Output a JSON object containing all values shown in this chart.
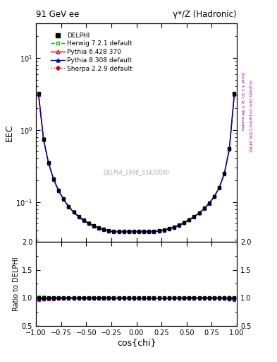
{
  "title_left": "91 GeV ee",
  "title_right": "γ*/Z (Hadronic)",
  "ylabel_main": "EEC",
  "ylabel_ratio": "Ratio to DELPHI",
  "xlabel": "cos{chi}",
  "watermark": "DELPHI_1996_S3430090",
  "right_label_top": "Rivet 3.1.10, ≥ 3.3M events",
  "right_label_bot": "mcplots.cern.ch [arXiv:1306.3436]",
  "xlim": [
    -1.0,
    1.0
  ],
  "ylim_main": [
    0.028,
    30
  ],
  "ylim_ratio": [
    0.5,
    2.0
  ],
  "cos_chi": [
    -0.975,
    -0.925,
    -0.875,
    -0.825,
    -0.775,
    -0.725,
    -0.675,
    -0.625,
    -0.575,
    -0.525,
    -0.475,
    -0.425,
    -0.375,
    -0.325,
    -0.275,
    -0.225,
    -0.175,
    -0.125,
    -0.075,
    -0.025,
    0.025,
    0.075,
    0.125,
    0.175,
    0.225,
    0.275,
    0.325,
    0.375,
    0.425,
    0.475,
    0.525,
    0.575,
    0.625,
    0.675,
    0.725,
    0.775,
    0.825,
    0.875,
    0.925,
    0.975
  ],
  "data_delphi": [
    3.2,
    0.75,
    0.35,
    0.21,
    0.145,
    0.11,
    0.087,
    0.073,
    0.063,
    0.056,
    0.051,
    0.047,
    0.044,
    0.042,
    0.04,
    0.039,
    0.039,
    0.039,
    0.039,
    0.039,
    0.039,
    0.039,
    0.039,
    0.039,
    0.04,
    0.041,
    0.043,
    0.045,
    0.048,
    0.052,
    0.057,
    0.063,
    0.071,
    0.082,
    0.097,
    0.12,
    0.16,
    0.25,
    0.55,
    3.2
  ],
  "data_delphi_err": [
    0.05,
    0.012,
    0.006,
    0.004,
    0.003,
    0.002,
    0.0015,
    0.0013,
    0.0011,
    0.001,
    0.0009,
    0.0008,
    0.0007,
    0.0007,
    0.0006,
    0.0006,
    0.0006,
    0.0006,
    0.0006,
    0.0006,
    0.0006,
    0.0006,
    0.0006,
    0.0006,
    0.0006,
    0.0007,
    0.0007,
    0.0008,
    0.0009,
    0.001,
    0.0011,
    0.0013,
    0.0015,
    0.002,
    0.003,
    0.004,
    0.006,
    0.01,
    0.02,
    0.05
  ],
  "herwig_ratio": [
    1.01,
    1.01,
    1.008,
    1.008,
    1.007,
    1.007,
    1.007,
    1.007,
    1.007,
    1.007,
    1.006,
    1.006,
    1.006,
    1.006,
    1.007,
    1.007,
    1.007,
    1.007,
    1.007,
    1.007,
    1.007,
    1.007,
    1.007,
    1.007,
    1.007,
    1.007,
    1.007,
    1.006,
    1.006,
    1.006,
    1.006,
    1.006,
    1.006,
    1.006,
    1.006,
    1.006,
    1.006,
    1.005,
    1.008,
    1.008
  ],
  "pythia6_ratio": [
    0.97,
    0.975,
    0.98,
    0.982,
    0.984,
    0.984,
    0.985,
    0.986,
    0.986,
    0.986,
    0.986,
    0.986,
    0.987,
    0.987,
    0.987,
    0.987,
    0.987,
    0.987,
    0.987,
    0.987,
    0.987,
    0.987,
    0.987,
    0.987,
    0.987,
    0.987,
    0.987,
    0.987,
    0.987,
    0.987,
    0.987,
    0.987,
    0.987,
    0.987,
    0.987,
    0.987,
    0.986,
    0.984,
    0.975,
    0.97
  ],
  "pythia8_ratio": [
    0.98,
    0.982,
    0.984,
    0.985,
    0.986,
    0.987,
    0.987,
    0.987,
    0.987,
    0.987,
    0.987,
    0.987,
    0.987,
    0.987,
    0.987,
    0.987,
    0.987,
    0.987,
    0.987,
    0.987,
    0.987,
    0.987,
    0.987,
    0.987,
    0.987,
    0.987,
    0.987,
    0.987,
    0.987,
    0.987,
    0.987,
    0.987,
    0.987,
    0.987,
    0.987,
    0.987,
    0.987,
    0.985,
    0.982,
    0.98
  ],
  "sherpa_ratio": [
    0.98,
    0.98,
    0.985,
    0.985,
    0.985,
    0.985,
    0.985,
    0.985,
    0.985,
    0.985,
    0.985,
    0.985,
    0.985,
    0.985,
    0.985,
    0.985,
    0.985,
    0.985,
    0.985,
    0.985,
    0.985,
    0.985,
    0.985,
    0.985,
    0.985,
    0.985,
    0.985,
    0.985,
    0.985,
    0.985,
    0.985,
    0.985,
    0.985,
    0.985,
    0.985,
    0.985,
    0.985,
    0.985,
    0.98,
    0.975
  ]
}
